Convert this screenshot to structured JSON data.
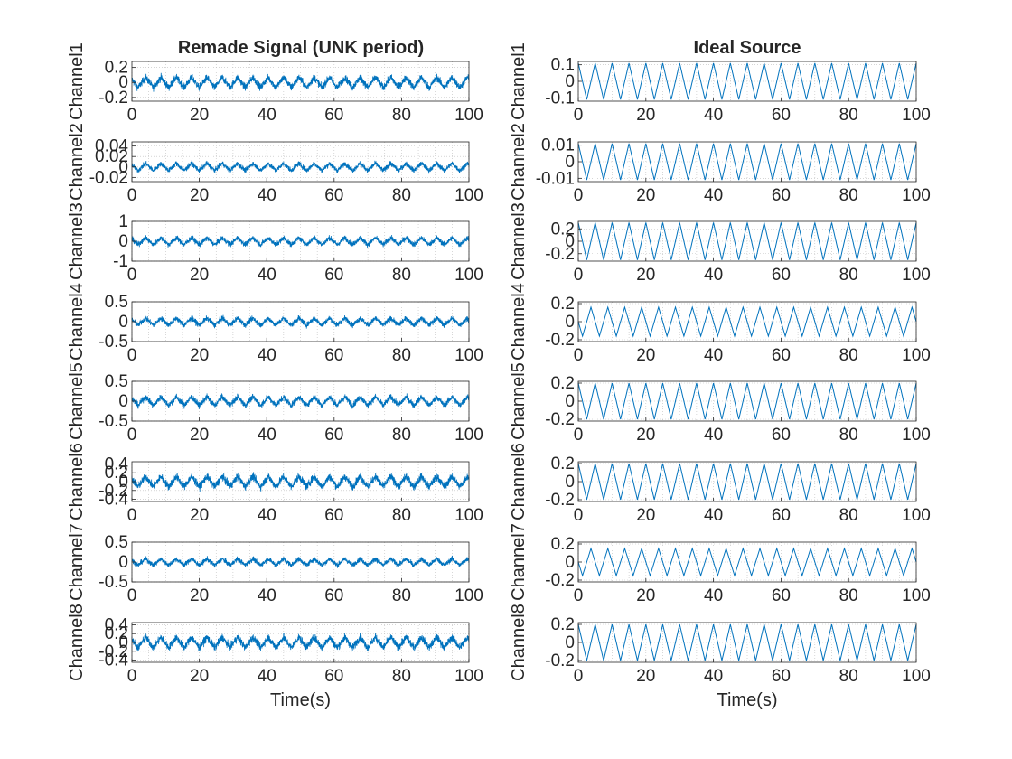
{
  "figure": {
    "left_title": "Remade Signal (UNK period)",
    "right_title": "Ideal Source",
    "xlabel": "Time(s)",
    "series_color": "#0072BD"
  },
  "chart_data": [
    {
      "type": "line",
      "column": "left",
      "row": 1,
      "title": "Remade Signal (UNK period)",
      "ylabel": "Channel1",
      "xlabel": "",
      "xlim": [
        0,
        100
      ],
      "ylim": [
        -0.25,
        0.28
      ],
      "yticks": [
        -0.2,
        0,
        0.2
      ],
      "ytick_labels": [
        "-0.2",
        "0",
        "0.2"
      ],
      "xticks": [
        0,
        20,
        40,
        60,
        80,
        100
      ],
      "grid": "dotted",
      "signal": {
        "kind": "noisy-triangle",
        "amplitude": 0.07,
        "noise": 0.1,
        "cycles": 22
      }
    },
    {
      "type": "line",
      "column": "left",
      "row": 2,
      "title": "",
      "ylabel": "Channel2",
      "xlabel": "",
      "xlim": [
        0,
        100
      ],
      "ylim": [
        -0.028,
        0.048
      ],
      "yticks": [
        -0.02,
        0,
        0.02,
        0.04
      ],
      "ytick_labels": [
        "-0.02",
        "0",
        "0.02",
        "0.04"
      ],
      "xticks": [
        0,
        20,
        40,
        60,
        80,
        100
      ],
      "grid": "dotted",
      "signal": {
        "kind": "noisy-triangle",
        "amplitude": 0.007,
        "noise": 0.01,
        "cycles": 22
      }
    },
    {
      "type": "line",
      "column": "left",
      "row": 3,
      "title": "",
      "ylabel": "Channel3",
      "xlabel": "",
      "xlim": [
        0,
        100
      ],
      "ylim": [
        -1,
        1
      ],
      "yticks": [
        -1,
        0,
        1
      ],
      "ytick_labels": [
        "-1",
        "0",
        "1"
      ],
      "xticks": [
        0,
        20,
        40,
        60,
        80,
        100
      ],
      "grid": "dotted",
      "signal": {
        "kind": "noisy-triangle",
        "amplitude": 0.18,
        "noise": 0.28,
        "cycles": 22
      }
    },
    {
      "type": "line",
      "column": "left",
      "row": 4,
      "title": "",
      "ylabel": "Channel4",
      "xlabel": "",
      "xlim": [
        0,
        100
      ],
      "ylim": [
        -0.5,
        0.5
      ],
      "yticks": [
        -0.5,
        0,
        0.5
      ],
      "ytick_labels": [
        "-0.5",
        "0",
        "0.5"
      ],
      "xticks": [
        0,
        20,
        40,
        60,
        80,
        100
      ],
      "grid": "dotted",
      "signal": {
        "kind": "noisy-triangle",
        "amplitude": 0.09,
        "noise": 0.14,
        "cycles": 22
      }
    },
    {
      "type": "line",
      "column": "left",
      "row": 5,
      "title": "",
      "ylabel": "Channel5",
      "xlabel": "",
      "xlim": [
        0,
        100
      ],
      "ylim": [
        -0.5,
        0.5
      ],
      "yticks": [
        -0.5,
        0,
        0.5
      ],
      "ytick_labels": [
        "-0.5",
        "0",
        "0.5"
      ],
      "xticks": [
        0,
        20,
        40,
        60,
        80,
        100
      ],
      "grid": "dotted",
      "signal": {
        "kind": "noisy-triangle",
        "amplitude": 0.11,
        "noise": 0.16,
        "cycles": 22
      }
    },
    {
      "type": "line",
      "column": "left",
      "row": 6,
      "title": "",
      "ylabel": "Channel6",
      "xlabel": "",
      "xlim": [
        0,
        100
      ],
      "ylim": [
        -0.45,
        0.45
      ],
      "yticks": [
        -0.4,
        -0.2,
        0,
        0.2,
        0.4
      ],
      "ytick_labels": [
        "-0.4",
        "-0.2",
        "0",
        "0.2",
        "0.4"
      ],
      "xticks": [
        0,
        20,
        40,
        60,
        80,
        100
      ],
      "grid": "dotted",
      "signal": {
        "kind": "noisy-triangle",
        "amplitude": 0.12,
        "noise": 0.18,
        "cycles": 22
      }
    },
    {
      "type": "line",
      "column": "left",
      "row": 7,
      "title": "",
      "ylabel": "Channel7",
      "xlabel": "",
      "xlim": [
        0,
        100
      ],
      "ylim": [
        -0.5,
        0.5
      ],
      "yticks": [
        -0.5,
        0,
        0.5
      ],
      "ytick_labels": [
        "-0.5",
        "0",
        "0.5"
      ],
      "xticks": [
        0,
        20,
        40,
        60,
        80,
        100
      ],
      "grid": "dotted",
      "signal": {
        "kind": "noisy-triangle",
        "amplitude": 0.08,
        "noise": 0.13,
        "cycles": 22
      }
    },
    {
      "type": "line",
      "column": "left",
      "row": 8,
      "title": "",
      "ylabel": "Channel8",
      "xlabel": "Time(s)",
      "xlim": [
        0,
        100
      ],
      "ylim": [
        -0.45,
        0.45
      ],
      "yticks": [
        -0.4,
        -0.2,
        0,
        0.2,
        0.4
      ],
      "ytick_labels": [
        "-0.4",
        "-0.2",
        "0",
        "0.2",
        "0.4"
      ],
      "xticks": [
        0,
        20,
        40,
        60,
        80,
        100
      ],
      "grid": "dotted",
      "signal": {
        "kind": "noisy-triangle",
        "amplitude": 0.12,
        "noise": 0.18,
        "cycles": 22
      }
    },
    {
      "type": "line",
      "column": "right",
      "row": 1,
      "title": "Ideal Source",
      "ylabel": "Channel1",
      "xlabel": "",
      "xlim": [
        0,
        100
      ],
      "ylim": [
        -0.12,
        0.12
      ],
      "yticks": [
        -0.1,
        0,
        0.1
      ],
      "ytick_labels": [
        "-0.1",
        "0",
        "0.1"
      ],
      "xticks": [
        0,
        20,
        40,
        60,
        80,
        100
      ],
      "grid": "dotted",
      "signal": {
        "kind": "triangle",
        "amplitude": 0.11,
        "cycles": 20,
        "phase": 0
      }
    },
    {
      "type": "line",
      "column": "right",
      "row": 2,
      "title": "",
      "ylabel": "Channel2",
      "xlabel": "",
      "xlim": [
        0,
        100
      ],
      "ylim": [
        -0.012,
        0.012
      ],
      "yticks": [
        -0.01,
        0,
        0.01
      ],
      "ytick_labels": [
        "-0.01",
        "0",
        "0.01"
      ],
      "xticks": [
        0,
        20,
        40,
        60,
        80,
        100
      ],
      "grid": "dotted",
      "signal": {
        "kind": "triangle",
        "amplitude": 0.011,
        "cycles": 20,
        "phase": 0
      }
    },
    {
      "type": "line",
      "column": "right",
      "row": 3,
      "title": "",
      "ylabel": "Channel3",
      "xlabel": "",
      "xlim": [
        0,
        100
      ],
      "ylim": [
        -0.32,
        0.32
      ],
      "yticks": [
        -0.2,
        0,
        0.2
      ],
      "ytick_labels": [
        "-0.2",
        "0",
        "0.2"
      ],
      "xticks": [
        0,
        20,
        40,
        60,
        80,
        100
      ],
      "grid": "dotted",
      "signal": {
        "kind": "triangle",
        "amplitude": 0.3,
        "cycles": 20,
        "phase": 0
      }
    },
    {
      "type": "line",
      "column": "right",
      "row": 4,
      "title": "",
      "ylabel": "Channel4",
      "xlabel": "",
      "xlim": [
        0,
        100
      ],
      "ylim": [
        -0.22,
        0.22
      ],
      "yticks": [
        -0.2,
        0,
        0.2
      ],
      "ytick_labels": [
        "-0.2",
        "0",
        "0.2"
      ],
      "xticks": [
        0,
        20,
        40,
        60,
        80,
        100
      ],
      "grid": "dotted",
      "signal": {
        "kind": "triangle",
        "amplitude": 0.16,
        "cycles": 20,
        "phase": 0.25
      }
    },
    {
      "type": "line",
      "column": "right",
      "row": 5,
      "title": "",
      "ylabel": "Channel5",
      "xlabel": "",
      "xlim": [
        0,
        100
      ],
      "ylim": [
        -0.22,
        0.22
      ],
      "yticks": [
        -0.2,
        0,
        0.2
      ],
      "ytick_labels": [
        "-0.2",
        "0",
        "0.2"
      ],
      "xticks": [
        0,
        20,
        40,
        60,
        80,
        100
      ],
      "grid": "dotted",
      "signal": {
        "kind": "triangle",
        "amplitude": 0.2,
        "cycles": 20,
        "phase": 0
      }
    },
    {
      "type": "line",
      "column": "right",
      "row": 6,
      "title": "",
      "ylabel": "Channel6",
      "xlabel": "",
      "xlim": [
        0,
        100
      ],
      "ylim": [
        -0.22,
        0.22
      ],
      "yticks": [
        -0.2,
        0,
        0.2
      ],
      "ytick_labels": [
        "-0.2",
        "0",
        "0.2"
      ],
      "xticks": [
        0,
        20,
        40,
        60,
        80,
        100
      ],
      "grid": "dotted",
      "signal": {
        "kind": "triangle",
        "amplitude": 0.2,
        "cycles": 20,
        "phase": 0
      }
    },
    {
      "type": "line",
      "column": "right",
      "row": 7,
      "title": "",
      "ylabel": "Channel7",
      "xlabel": "",
      "xlim": [
        0,
        100
      ],
      "ylim": [
        -0.22,
        0.22
      ],
      "yticks": [
        -0.2,
        0,
        0.2
      ],
      "ytick_labels": [
        "-0.2",
        "0",
        "0.2"
      ],
      "xticks": [
        0,
        20,
        40,
        60,
        80,
        100
      ],
      "grid": "dotted",
      "signal": {
        "kind": "triangle",
        "amplitude": 0.15,
        "cycles": 20,
        "phase": 0.25
      }
    },
    {
      "type": "line",
      "column": "right",
      "row": 8,
      "title": "",
      "ylabel": "Channel8",
      "xlabel": "Time(s)",
      "xlim": [
        0,
        100
      ],
      "ylim": [
        -0.22,
        0.22
      ],
      "yticks": [
        -0.2,
        0,
        0.2
      ],
      "ytick_labels": [
        "-0.2",
        "0",
        "0.2"
      ],
      "xticks": [
        0,
        20,
        40,
        60,
        80,
        100
      ],
      "grid": "dotted",
      "signal": {
        "kind": "triangle",
        "amplitude": 0.2,
        "cycles": 20,
        "phase": 0
      }
    }
  ]
}
